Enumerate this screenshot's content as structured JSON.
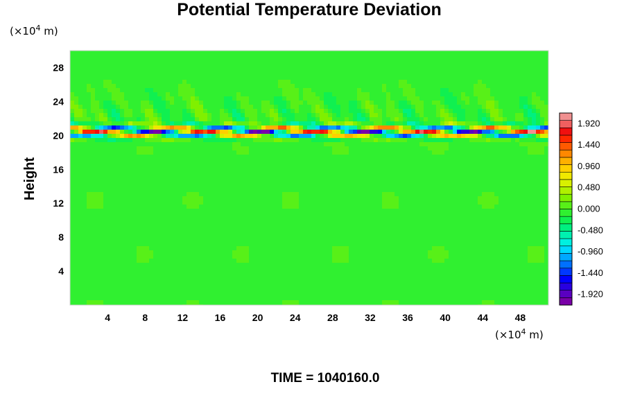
{
  "chart_data": {
    "type": "heatmap",
    "title": "Potential Temperature Deviation",
    "ylabel": "Height",
    "x_unit_base": "(×10",
    "x_unit_exp": "4",
    "x_unit_tail": " m)",
    "y_unit_base": "(×10",
    "y_unit_exp": "4",
    "y_unit_tail": " m)",
    "xlim": [
      0,
      51
    ],
    "ylim": [
      0,
      30
    ],
    "x_ticks": [
      4,
      8,
      12,
      16,
      20,
      24,
      28,
      32,
      36,
      40,
      44,
      48
    ],
    "x_tick_labels": [
      "4",
      "8",
      "12",
      "16",
      "20",
      "24",
      "28",
      "32",
      "36",
      "40",
      "44",
      "48"
    ],
    "y_ticks": [
      4,
      8,
      12,
      16,
      20,
      24,
      28
    ],
    "y_tick_labels": [
      "4",
      "8",
      "12",
      "16",
      "20",
      "24",
      "28"
    ],
    "colorbar": {
      "range": [
        -2.16,
        2.16
      ],
      "tick_values": [
        1.92,
        1.44,
        0.96,
        0.48,
        0.0,
        -0.48,
        -0.96,
        -1.44,
        -1.92
      ],
      "tick_labels": [
        "1.920",
        "1.440",
        "0.960",
        "0.480",
        "0.000",
        "-0.480",
        "-0.960",
        "-1.440",
        "-1.920"
      ],
      "colors": [
        "#7a00a8",
        "#5a00c0",
        "#2800e0",
        "#0000ff",
        "#0038ff",
        "#0070ff",
        "#00a8ff",
        "#00d8ff",
        "#00f0e0",
        "#00f0b0",
        "#00f080",
        "#10f050",
        "#30f030",
        "#58f018",
        "#80f000",
        "#b0f000",
        "#d8f000",
        "#f0e800",
        "#ffd000",
        "#ffb000",
        "#ff8800",
        "#ff5a00",
        "#ff2800",
        "#f01010",
        "#f06060",
        "#f09090"
      ]
    },
    "field_description": "Near-zero deviation (green) throughout; strong alternating positive/negative band near height 20–22 (×10^4 m); weak wave pattern above 22.",
    "caption": "TIME = 1040160.0"
  }
}
